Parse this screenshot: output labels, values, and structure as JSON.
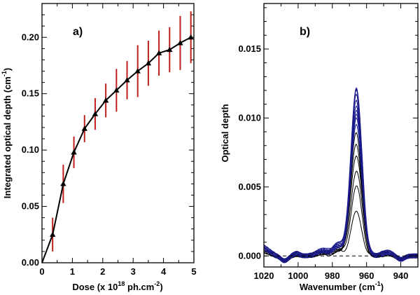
{
  "chart_data": [
    {
      "type": "line",
      "panel_label": "a)",
      "xlabel_parts": [
        "Dose (x 10",
        "18",
        " ph.cm",
        "-2",
        ")"
      ],
      "ylabel_parts": [
        "Integrated optical depth (cm",
        "-1",
        ")"
      ],
      "xlim": [
        0,
        5
      ],
      "ylim": [
        0,
        0.23
      ],
      "xticks": [
        0,
        1,
        2,
        3,
        4,
        5
      ],
      "xtick_labels": [
        "0",
        "1",
        "2",
        "3",
        "4",
        "5"
      ],
      "yticks": [
        0,
        0.05,
        0.1,
        0.15,
        0.2
      ],
      "ytick_labels": [
        "0.00",
        "0.05",
        "0.10",
        "0.15",
        "0.20"
      ],
      "series": [
        {
          "name": "integrated optical depth",
          "x": [
            0,
            0.35,
            0.7,
            1.05,
            1.4,
            1.75,
            2.1,
            2.45,
            2.8,
            3.15,
            3.5,
            3.85,
            4.2,
            4.55,
            4.9
          ],
          "y": [
            0,
            0.025,
            0.07,
            0.098,
            0.119,
            0.132,
            0.144,
            0.153,
            0.162,
            0.17,
            0.177,
            0.186,
            0.189,
            0.195,
            0.2
          ],
          "yerr": [
            0,
            0.015,
            0.017,
            0.014,
            0.012,
            0.014,
            0.015,
            0.019,
            0.017,
            0.023,
            0.02,
            0.02,
            0.02,
            0.024,
            0.023
          ],
          "line_color": "#000000",
          "marker": "triangle",
          "error_color": "#c0201a"
        }
      ]
    },
    {
      "type": "line",
      "panel_label": "b)",
      "xlabel_parts": [
        "Wavenumber (cm",
        "-1",
        ")"
      ],
      "ylabel": "Optical depth",
      "xlim": [
        1020,
        930
      ],
      "ylim": [
        -0.0008,
        0.0183
      ],
      "xticks": [
        1020,
        1000,
        980,
        960,
        940
      ],
      "xtick_labels": [
        "1020",
        "1000",
        "980",
        "960",
        "940"
      ],
      "yticks": [
        0,
        0.005,
        0.01,
        0.015
      ],
      "ytick_labels": [
        "0.000",
        "0.005",
        "0.010",
        "0.015"
      ],
      "baseline": 0,
      "peak_center": 966,
      "peak_width": 4.6,
      "wavenumber_grid": [
        1020,
        1017.5,
        1015,
        1012.5,
        1010,
        1007.5,
        1005,
        1002.5,
        1000,
        997.5,
        995,
        992.5,
        990,
        987.5,
        985,
        982.5,
        980,
        977.5,
        975,
        972.5,
        970,
        967.5,
        965,
        962.5,
        960,
        957.5,
        955,
        952.5,
        950,
        947.5,
        945,
        942.5,
        940,
        937.5,
        935,
        932.5,
        930
      ],
      "peak_heights": [
        0.0031,
        0.005,
        0.0062,
        0.0074,
        0.0082,
        0.0089,
        0.0094,
        0.0099,
        0.0103,
        0.0107,
        0.011,
        0.0113,
        0.0116,
        0.0119,
        0.0121,
        0.0123
      ],
      "early_color": "#000000",
      "late_color": "#1a1a8c"
    }
  ]
}
